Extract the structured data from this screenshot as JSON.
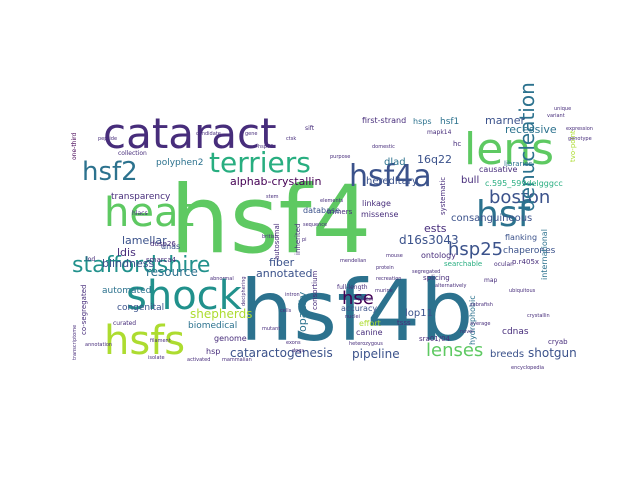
{
  "words": [
    {
      "text": "hsf4",
      "color": "#5ec962"
    },
    {
      "text": "hsf4b",
      "color": "#2c728e"
    },
    {
      "text": "cataract",
      "color": "#472d7b"
    },
    {
      "text": "lens",
      "color": "#5ec962"
    },
    {
      "text": "heat",
      "color": "#5ec962"
    },
    {
      "text": "shock",
      "color": "#21918c"
    },
    {
      "text": "hsfs",
      "color": "#addc30"
    },
    {
      "text": "hsf4a",
      "color": "#3b528b"
    },
    {
      "text": "hsf",
      "color": "#2c728e"
    },
    {
      "text": "terriers",
      "color": "#28ae80"
    },
    {
      "text": "hsf2",
      "color": "#2c728e"
    },
    {
      "text": "staffordshire",
      "color": "#21918c"
    },
    {
      "text": "boston",
      "color": "#3b528b"
    },
    {
      "text": "denucleation",
      "color": "#2c728e"
    },
    {
      "text": "hsp25",
      "color": "#3b528b"
    },
    {
      "text": "lenses",
      "color": "#5ec962"
    },
    {
      "text": "alphab-crystallin",
      "color": "#440154"
    },
    {
      "text": "hse",
      "color": "#440154"
    },
    {
      "text": "shepherds",
      "color": "#addc30"
    },
    {
      "text": "cataractogenesis",
      "color": "#3b528b"
    },
    {
      "text": "pipeline",
      "color": "#3b528b"
    },
    {
      "text": "shotgun",
      "color": "#3b528b"
    },
    {
      "text": "lamellar",
      "color": "#3b528b"
    },
    {
      "text": "transparency",
      "color": "#472d7b"
    },
    {
      "text": "blindness",
      "color": "#3b528b"
    },
    {
      "text": "recessive",
      "color": "#2c728e"
    },
    {
      "text": "resource",
      "color": "#2c728e"
    },
    {
      "text": "fiber",
      "color": "#3b528b"
    },
    {
      "text": "annotated",
      "color": "#3b528b"
    },
    {
      "text": "opacity",
      "color": "#2c728e"
    },
    {
      "text": "consanguineous",
      "color": "#3b528b"
    },
    {
      "text": "d16s3043",
      "color": "#3b528b"
    },
    {
      "text": "dlad",
      "color": "#2c728e"
    },
    {
      "text": "hereditary",
      "color": "#3b528b"
    },
    {
      "text": "bull",
      "color": "#472d7b"
    },
    {
      "text": "marner",
      "color": "#3b528b"
    },
    {
      "text": "16q22",
      "color": "#3b528b"
    },
    {
      "text": "ests",
      "color": "#472d7b"
    },
    {
      "text": "lop11",
      "color": "#3b528b"
    },
    {
      "text": "breeds",
      "color": "#3b528b"
    },
    {
      "text": "ldis",
      "color": "#472d7b"
    },
    {
      "text": "automated",
      "color": "#2c728e"
    },
    {
      "text": "biomedical",
      "color": "#2c728e"
    },
    {
      "text": "congenital",
      "color": "#3b528b"
    },
    {
      "text": "genome",
      "color": "#472d7b"
    },
    {
      "text": "hsp",
      "color": "#472d7b"
    },
    {
      "text": "dnas",
      "color": "#3b528b"
    },
    {
      "text": "first-strand",
      "color": "#472d7b"
    },
    {
      "text": "hsps",
      "color": "#2c728e"
    },
    {
      "text": "hsf1",
      "color": "#2c728e"
    },
    {
      "text": "polyphen2",
      "color": "#2c728e"
    },
    {
      "text": "chaperones",
      "color": "#3b528b"
    },
    {
      "text": "ontology",
      "color": "#472d7b"
    },
    {
      "text": "effort",
      "color": "#addc30"
    },
    {
      "text": "canine",
      "color": "#472d7b"
    },
    {
      "text": "accuracy",
      "color": "#3b528b"
    },
    {
      "text": "cdnas",
      "color": "#472d7b"
    },
    {
      "text": "smarca4",
      "color": "#472d7b"
    },
    {
      "text": "dusp26",
      "color": "#472d7b"
    },
    {
      "text": "trimers",
      "color": "#472d7b"
    },
    {
      "text": "database",
      "color": "#3b528b"
    },
    {
      "text": "linkage",
      "color": "#472d7b"
    },
    {
      "text": "missense",
      "color": "#472d7b"
    },
    {
      "text": "causative",
      "color": "#472d7b"
    },
    {
      "text": "libraries",
      "color": "#2c728e"
    },
    {
      "text": "flanking",
      "color": "#3b528b"
    },
    {
      "text": "international",
      "color": "#2c728e"
    },
    {
      "text": "searchable",
      "color": "#28ae80"
    },
    {
      "text": "splicing",
      "color": "#472d7b"
    },
    {
      "text": "hydrophobic",
      "color": "#2c728e"
    },
    {
      "text": "sra01/04",
      "color": "#472d7b"
    },
    {
      "text": "tsss",
      "color": "#472d7b"
    },
    {
      "text": "map",
      "color": "#472d7b"
    },
    {
      "text": "ocular",
      "color": "#472d7b"
    },
    {
      "text": "cryab",
      "color": "#472d7b"
    },
    {
      "text": "p.r405x",
      "color": "#472d7b"
    },
    {
      "text": "c.595_599delgggcc",
      "color": "#28ae80"
    },
    {
      "text": "co-segregated",
      "color": "#472d7b"
    },
    {
      "text": "curated",
      "color": "#472d7b"
    },
    {
      "text": "systematic",
      "color": "#472d7b"
    },
    {
      "text": "autosomal",
      "color": "#472d7b"
    },
    {
      "text": "inherited",
      "color": "#472d7b"
    },
    {
      "text": "consortium",
      "color": "#472d7b"
    },
    {
      "text": "hc",
      "color": "#472d7b"
    },
    {
      "text": "mapk14",
      "color": "#472d7b"
    },
    {
      "text": "full-length",
      "color": "#472d7b"
    },
    {
      "text": "riken",
      "color": "#472d7b"
    },
    {
      "text": "tvo-point",
      "color": "#addc30"
    },
    {
      "text": "one-third",
      "color": "#440154"
    },
    {
      "text": "collection",
      "color": "#472d7b"
    },
    {
      "text": "hlacs",
      "color": "#472d7b"
    },
    {
      "text": "filament",
      "color": "#472d7b"
    },
    {
      "text": "transcriptome",
      "color": "#472d7b"
    },
    {
      "text": "sift",
      "color": "#472d7b"
    },
    {
      "text": "lod",
      "color": "#472d7b"
    },
    {
      "text": "deciphering",
      "color": "#472d7b"
    },
    {
      "text": "gene",
      "color": "#472d7b"
    },
    {
      "text": "hsp70",
      "color": "#472d7b"
    },
    {
      "text": "ctsk",
      "color": "#472d7b"
    },
    {
      "text": "stem",
      "color": "#472d7b"
    },
    {
      "text": "pi",
      "color": "#472d7b"
    },
    {
      "text": "mendelian",
      "color": "#472d7b"
    },
    {
      "text": "protein",
      "color": "#472d7b"
    },
    {
      "text": "mutant",
      "color": "#472d7b"
    },
    {
      "text": "exons",
      "color": "#472d7b"
    },
    {
      "text": "dogs",
      "color": "#472d7b"
    },
    {
      "text": "british",
      "color": "#472d7b"
    },
    {
      "text": "average",
      "color": "#472d7b"
    },
    {
      "text": "purpose",
      "color": "#472d7b"
    },
    {
      "text": "domestic",
      "color": "#472d7b"
    },
    {
      "text": "encyclopedia",
      "color": "#472d7b"
    },
    {
      "text": "candidate",
      "color": "#472d7b"
    },
    {
      "text": "abnormal",
      "color": "#472d7b"
    },
    {
      "text": "cells",
      "color": "#472d7b"
    },
    {
      "text": "heterozygous",
      "color": "#472d7b"
    },
    {
      "text": "mouse",
      "color": "#472d7b"
    },
    {
      "text": "segregated",
      "color": "#472d7b"
    },
    {
      "text": "isolate",
      "color": "#472d7b"
    },
    {
      "text": "activated",
      "color": "#472d7b"
    },
    {
      "text": "mammalian",
      "color": "#472d7b"
    },
    {
      "text": "zebrafish",
      "color": "#472d7b"
    },
    {
      "text": "ubiquitous",
      "color": "#472d7b"
    },
    {
      "text": "alternatively",
      "color": "#472d7b"
    },
    {
      "text": "recreation",
      "color": "#472d7b"
    },
    {
      "text": "murine",
      "color": "#472d7b"
    },
    {
      "text": "nuclei",
      "color": "#472d7b"
    },
    {
      "text": "elements",
      "color": "#472d7b"
    },
    {
      "text": "sequence",
      "color": "#472d7b"
    },
    {
      "text": "intron",
      "color": "#472d7b"
    },
    {
      "text": "novel",
      "color": "#472d7b"
    },
    {
      "text": "crystallin",
      "color": "#472d7b"
    },
    {
      "text": "annotation",
      "color": "#472d7b"
    },
    {
      "text": "peptide",
      "color": "#472d7b"
    },
    {
      "text": "unique",
      "color": "#472d7b"
    },
    {
      "text": "variant",
      "color": "#472d7b"
    },
    {
      "text": "expression",
      "color": "#472d7b"
    },
    {
      "text": "genotype",
      "color": "#472d7b"
    }
  ]
}
